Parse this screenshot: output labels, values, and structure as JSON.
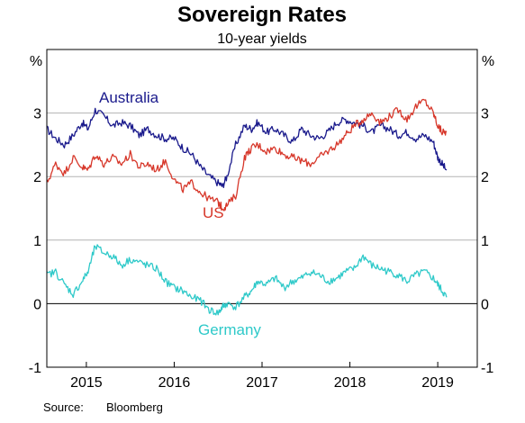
{
  "chart_data": {
    "type": "line",
    "title": "Sovereign Rates",
    "subtitle": "10-year yields",
    "y_unit_left": "%",
    "y_unit_right": "%",
    "ylim": [
      -1,
      4
    ],
    "y_ticks": [
      "-1",
      "0",
      "1",
      "2",
      "3"
    ],
    "x_ticks": [
      "2015",
      "2016",
      "2017",
      "2018",
      "2019"
    ],
    "xlim": [
      2014.55,
      2019.45
    ],
    "grid": "horizontal",
    "source_label": "Source:",
    "source_value": "Bloomberg",
    "colors": {
      "australia": "#1a1a8c",
      "us": "#d7372a",
      "germany": "#2ec9c9",
      "grid": "#b3b3b3",
      "zero_line": "#000000"
    },
    "series": [
      {
        "name": "Australia",
        "color": "#1a1a8c",
        "x": [
          2014.55,
          2014.65,
          2014.75,
          2014.85,
          2014.95,
          2015.02,
          2015.1,
          2015.2,
          2015.3,
          2015.4,
          2015.5,
          2015.6,
          2015.7,
          2015.8,
          2015.9,
          2016.0,
          2016.1,
          2016.2,
          2016.3,
          2016.4,
          2016.5,
          2016.55,
          2016.6,
          2016.7,
          2016.8,
          2016.88,
          2016.95,
          2017.05,
          2017.15,
          2017.25,
          2017.35,
          2017.45,
          2017.55,
          2017.65,
          2017.75,
          2017.85,
          2017.95,
          2018.05,
          2018.15,
          2018.25,
          2018.35,
          2018.45,
          2018.55,
          2018.65,
          2018.75,
          2018.85,
          2018.95,
          2019.0,
          2019.05,
          2019.1
        ],
        "values": [
          2.75,
          2.6,
          2.5,
          2.65,
          2.85,
          2.75,
          3.05,
          2.95,
          2.8,
          2.85,
          2.8,
          2.65,
          2.75,
          2.65,
          2.6,
          2.6,
          2.45,
          2.35,
          2.15,
          2.0,
          1.9,
          1.85,
          2.0,
          2.5,
          2.8,
          2.75,
          2.85,
          2.7,
          2.75,
          2.65,
          2.55,
          2.75,
          2.65,
          2.6,
          2.7,
          2.85,
          2.9,
          2.85,
          2.8,
          2.7,
          2.8,
          2.75,
          2.65,
          2.7,
          2.6,
          2.65,
          2.55,
          2.3,
          2.2,
          2.1
        ]
      },
      {
        "name": "US",
        "color": "#d7372a",
        "x": [
          2014.55,
          2014.65,
          2014.75,
          2014.85,
          2014.95,
          2015.02,
          2015.1,
          2015.2,
          2015.3,
          2015.4,
          2015.5,
          2015.6,
          2015.7,
          2015.8,
          2015.9,
          2016.0,
          2016.1,
          2016.2,
          2016.3,
          2016.4,
          2016.5,
          2016.55,
          2016.6,
          2016.7,
          2016.8,
          2016.88,
          2016.95,
          2017.05,
          2017.15,
          2017.25,
          2017.35,
          2017.45,
          2017.55,
          2017.65,
          2017.75,
          2017.85,
          2017.95,
          2018.05,
          2018.15,
          2018.25,
          2018.35,
          2018.45,
          2018.55,
          2018.65,
          2018.75,
          2018.85,
          2018.95,
          2019.0,
          2019.05,
          2019.1
        ],
        "values": [
          1.9,
          2.2,
          2.05,
          2.3,
          2.15,
          2.1,
          2.35,
          2.2,
          2.3,
          2.2,
          2.35,
          2.15,
          2.2,
          2.1,
          2.25,
          1.95,
          1.8,
          1.9,
          1.75,
          1.65,
          1.6,
          1.5,
          1.55,
          1.7,
          2.3,
          2.45,
          2.5,
          2.4,
          2.45,
          2.35,
          2.3,
          2.25,
          2.2,
          2.3,
          2.4,
          2.5,
          2.65,
          2.8,
          2.9,
          3.0,
          2.85,
          2.95,
          3.05,
          2.9,
          3.1,
          3.2,
          3.0,
          2.8,
          2.7,
          2.7
        ]
      },
      {
        "name": "Germany",
        "color": "#2ec9c9",
        "x": [
          2014.55,
          2014.65,
          2014.75,
          2014.85,
          2014.95,
          2015.02,
          2015.1,
          2015.2,
          2015.3,
          2015.4,
          2015.5,
          2015.6,
          2015.7,
          2015.8,
          2015.9,
          2016.0,
          2016.1,
          2016.2,
          2016.3,
          2016.4,
          2016.5,
          2016.55,
          2016.6,
          2016.7,
          2016.8,
          2016.88,
          2016.95,
          2017.05,
          2017.15,
          2017.25,
          2017.35,
          2017.45,
          2017.55,
          2017.65,
          2017.75,
          2017.85,
          2017.95,
          2018.05,
          2018.15,
          2018.25,
          2018.35,
          2018.45,
          2018.55,
          2018.65,
          2018.75,
          2018.85,
          2018.95,
          2019.0,
          2019.05,
          2019.1
        ],
        "values": [
          0.45,
          0.5,
          0.3,
          0.15,
          0.35,
          0.5,
          0.9,
          0.8,
          0.75,
          0.6,
          0.7,
          0.65,
          0.6,
          0.55,
          0.35,
          0.25,
          0.2,
          0.1,
          0.05,
          -0.1,
          -0.15,
          -0.05,
          0.0,
          -0.05,
          0.1,
          0.2,
          0.35,
          0.3,
          0.4,
          0.25,
          0.35,
          0.4,
          0.5,
          0.45,
          0.35,
          0.4,
          0.5,
          0.55,
          0.75,
          0.6,
          0.55,
          0.5,
          0.45,
          0.35,
          0.45,
          0.5,
          0.4,
          0.3,
          0.2,
          0.1
        ]
      }
    ]
  }
}
